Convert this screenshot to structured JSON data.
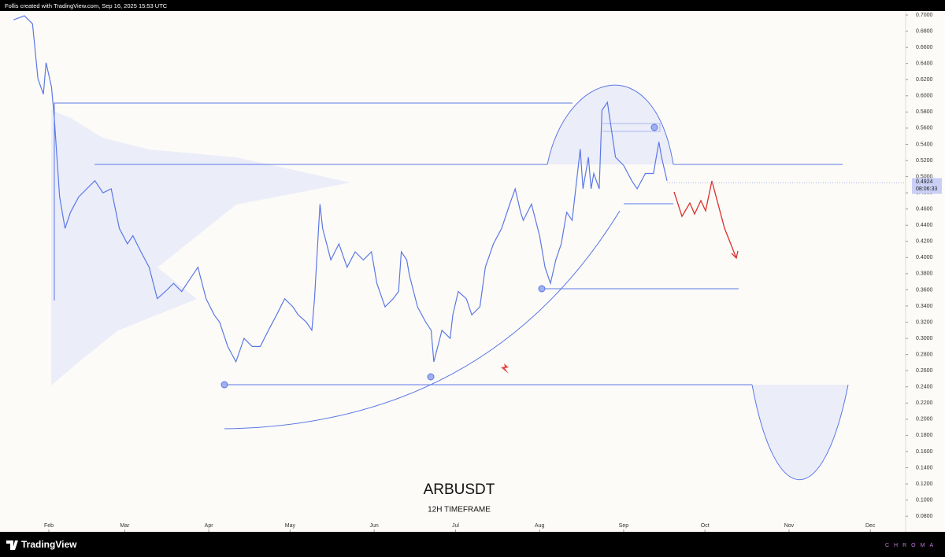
{
  "header": {
    "credit": "Follis created with TradingView.com, Sep 16, 2025 15:53 UTC"
  },
  "footer": {
    "brand": "TradingView",
    "signature": "CHROMA"
  },
  "chart_data": {
    "type": "line",
    "title": "ARBUSDT",
    "subtitle": "12H TIMEFRAME",
    "x": [
      18,
      22,
      25,
      27,
      29,
      30,
      32,
      33,
      35,
      37,
      39,
      42,
      45,
      48,
      51,
      54,
      57,
      60,
      62,
      65,
      68,
      71,
      74,
      77,
      80,
      83,
      86,
      89,
      92,
      94,
      97,
      100,
      103,
      106,
      109,
      112,
      115,
      118,
      121,
      123,
      126,
      128,
      129,
      131,
      132,
      135,
      138,
      141,
      144,
      147,
      150,
      152,
      155,
      158,
      160,
      161,
      163,
      164,
      167,
      170,
      172,
      173,
      176,
      179,
      180,
      182,
      185,
      187,
      190,
      192,
      195,
      198,
      201,
      203,
      205,
      206,
      209,
      212,
      214,
      216,
      218,
      220,
      222,
      224,
      227,
      228,
      230,
      231,
      232,
      234,
      235,
      237,
      240,
      243,
      246,
      248,
      251,
      254,
      256,
      257,
      259
    ],
    "series": [
      {
        "name": "ARBUSDT",
        "color": "#5b78e6",
        "values": [
          0.694,
          0.699,
          0.689,
          0.621,
          0.602,
          0.641,
          0.611,
          0.573,
          0.475,
          0.436,
          0.456,
          0.475,
          0.485,
          0.495,
          0.48,
          0.485,
          0.436,
          0.417,
          0.427,
          0.407,
          0.388,
          0.349,
          0.358,
          0.368,
          0.358,
          0.373,
          0.388,
          0.349,
          0.329,
          0.32,
          0.29,
          0.271,
          0.3,
          0.29,
          0.29,
          0.31,
          0.329,
          0.349,
          0.339,
          0.329,
          0.32,
          0.31,
          0.349,
          0.466,
          0.436,
          0.397,
          0.417,
          0.388,
          0.407,
          0.397,
          0.407,
          0.368,
          0.339,
          0.349,
          0.358,
          0.407,
          0.397,
          0.378,
          0.339,
          0.32,
          0.31,
          0.271,
          0.31,
          0.3,
          0.329,
          0.358,
          0.349,
          0.329,
          0.339,
          0.388,
          0.417,
          0.436,
          0.466,
          0.485,
          0.456,
          0.446,
          0.466,
          0.427,
          0.388,
          0.368,
          0.397,
          0.417,
          0.456,
          0.446,
          0.534,
          0.485,
          0.524,
          0.485,
          0.504,
          0.485,
          0.582,
          0.592,
          0.524,
          0.514,
          0.495,
          0.485,
          0.504,
          0.504,
          0.543,
          0.524,
          0.495
        ]
      }
    ],
    "last_price": 0.4924,
    "countdown": "08:06:33",
    "xlim": [
      13,
      347
    ],
    "xticks": [
      {
        "value": 31,
        "label": "Feb"
      },
      {
        "value": 59,
        "label": "Mar"
      },
      {
        "value": 90,
        "label": "Apr"
      },
      {
        "value": 120,
        "label": "May"
      },
      {
        "value": 151,
        "label": "Jun"
      },
      {
        "value": 181,
        "label": "Jul"
      },
      {
        "value": 212,
        "label": "Aug"
      },
      {
        "value": 243,
        "label": "Sep"
      },
      {
        "value": 273,
        "label": "Oct"
      },
      {
        "value": 304,
        "label": "Nov"
      },
      {
        "value": 334,
        "label": "Dec"
      }
    ],
    "ylim": [
      0.0607,
      0.7049
    ],
    "yticks": [
      {
        "value": 0.7,
        "label": "0.7000"
      },
      {
        "value": 0.68,
        "label": "0.6800"
      },
      {
        "value": 0.66,
        "label": "0.6600"
      },
      {
        "value": 0.64,
        "label": "0.6400"
      },
      {
        "value": 0.62,
        "label": "0.6200"
      },
      {
        "value": 0.6,
        "label": "0.6000"
      },
      {
        "value": 0.58,
        "label": "0.5800"
      },
      {
        "value": 0.56,
        "label": "0.5600"
      },
      {
        "value": 0.54,
        "label": "0.5400"
      },
      {
        "value": 0.52,
        "label": "0.5200"
      },
      {
        "value": 0.5,
        "label": "0.5000"
      },
      {
        "value": 0.48,
        "label": "0.4800"
      },
      {
        "value": 0.46,
        "label": "0.4600"
      },
      {
        "value": 0.44,
        "label": "0.4400"
      },
      {
        "value": 0.42,
        "label": "0.4200"
      },
      {
        "value": 0.4,
        "label": "0.4000"
      },
      {
        "value": 0.38,
        "label": "0.3800"
      },
      {
        "value": 0.36,
        "label": "0.3600"
      },
      {
        "value": 0.34,
        "label": "0.3400"
      },
      {
        "value": 0.32,
        "label": "0.3200"
      },
      {
        "value": 0.3,
        "label": "0.3000"
      },
      {
        "value": 0.28,
        "label": "0.2800"
      },
      {
        "value": 0.26,
        "label": "0.2600"
      },
      {
        "value": 0.24,
        "label": "0.2400"
      },
      {
        "value": 0.22,
        "label": "0.2200"
      },
      {
        "value": 0.2,
        "label": "0.2000"
      },
      {
        "value": 0.18,
        "label": "0.1800"
      },
      {
        "value": 0.16,
        "label": "0.1600"
      },
      {
        "value": 0.14,
        "label": "0.1400"
      },
      {
        "value": 0.12,
        "label": "0.1200"
      },
      {
        "value": 0.1,
        "label": "0.1000"
      },
      {
        "value": 0.08,
        "label": "0.0800"
      }
    ],
    "grid": false
  }
}
